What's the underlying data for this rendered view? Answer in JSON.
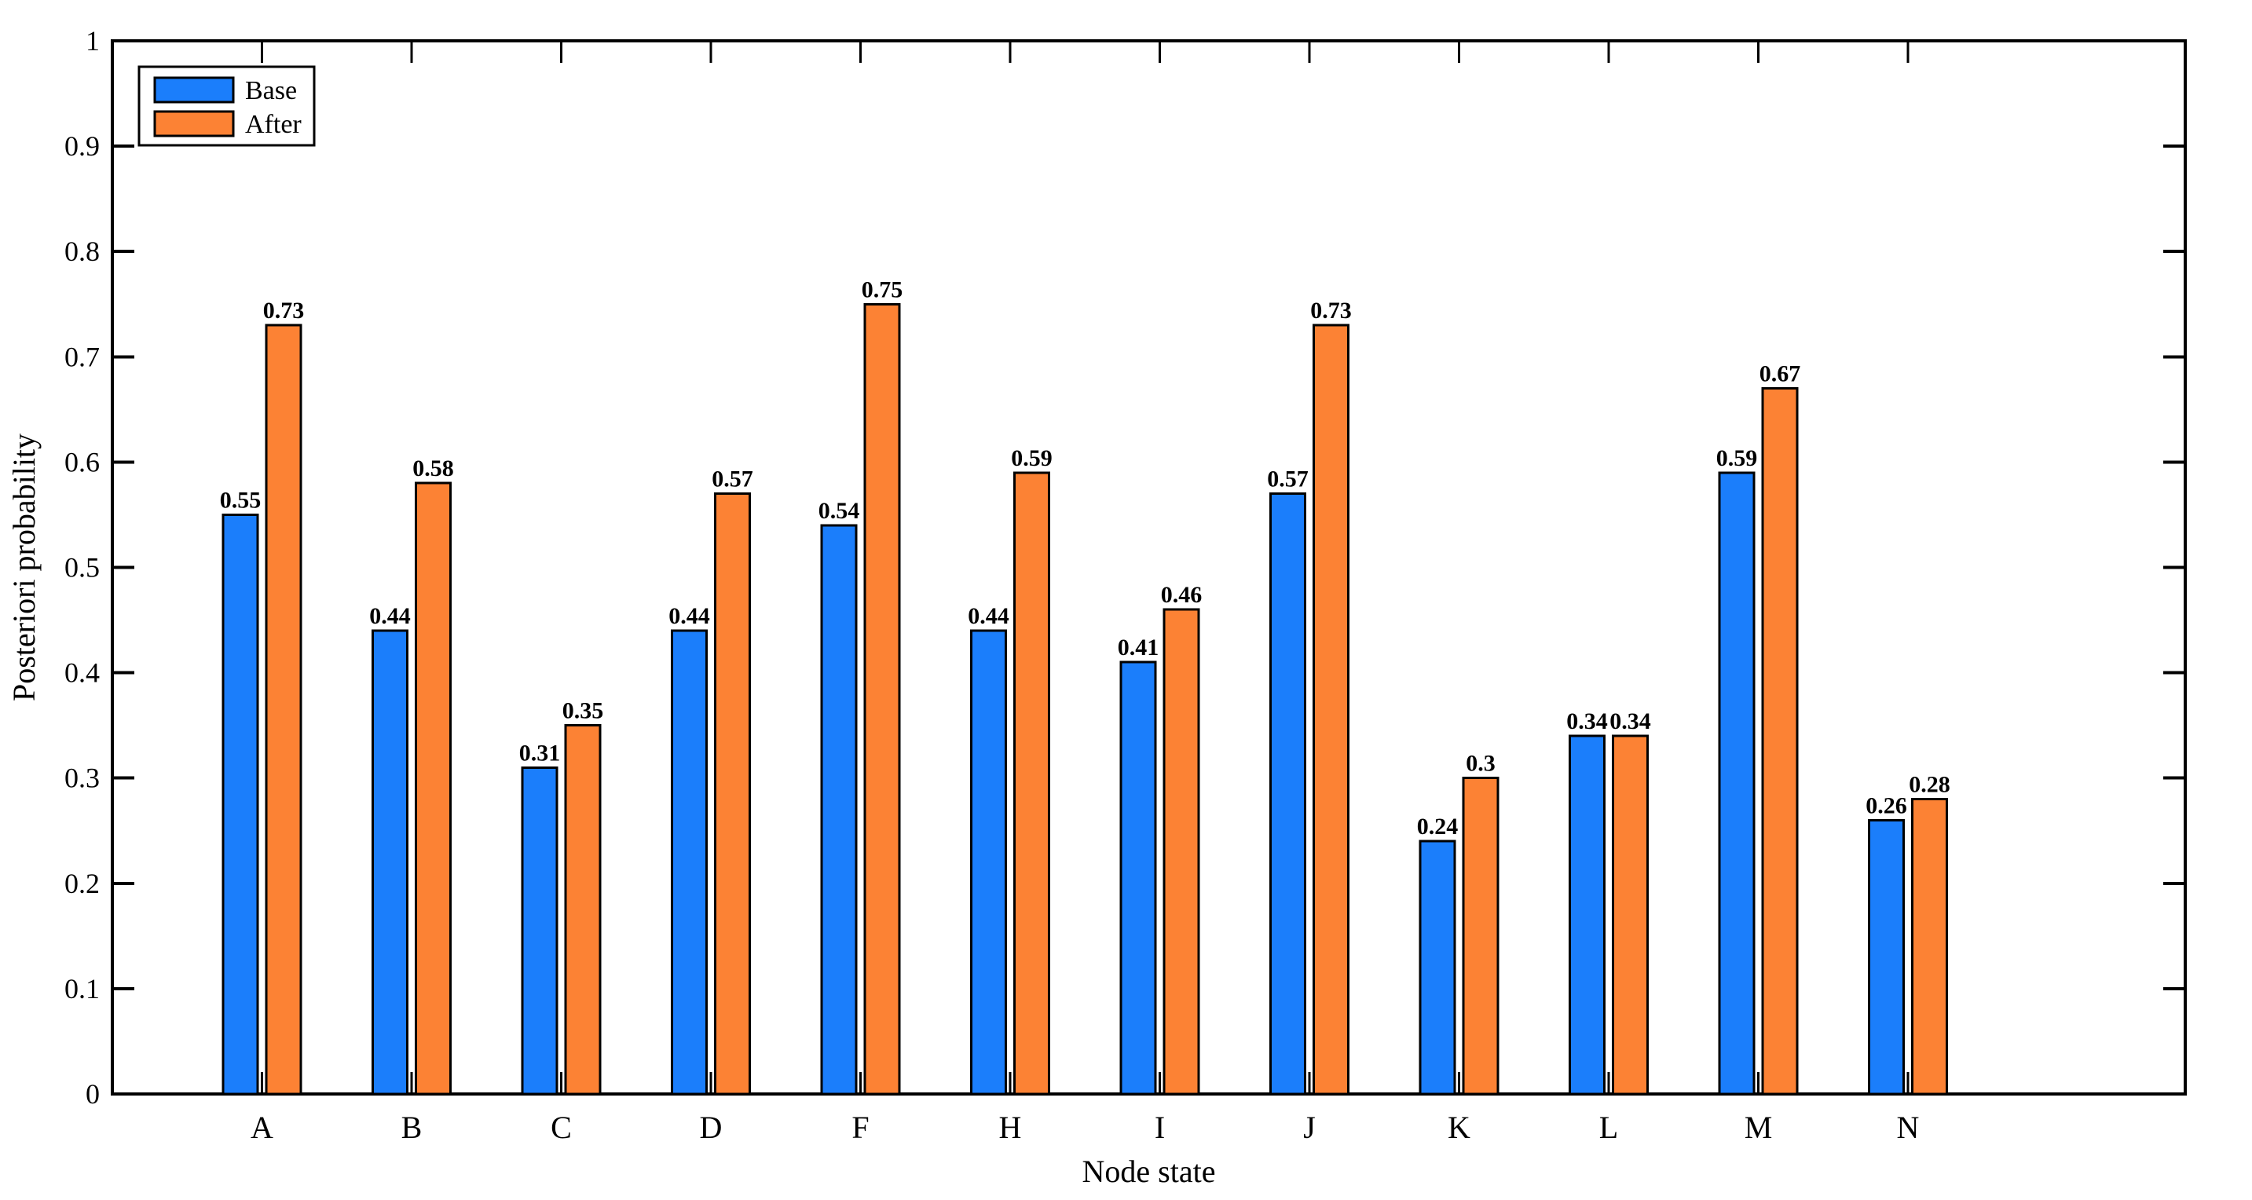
{
  "chart_data": {
    "type": "bar",
    "title": "",
    "xlabel": "Node state",
    "ylabel": "Posteriori probability",
    "categories": [
      "A",
      "B",
      "C",
      "D",
      "F",
      "H",
      "I",
      "J",
      "K",
      "L",
      "M",
      "N"
    ],
    "series": [
      {
        "name": "Base",
        "color": "#1B7EFB",
        "values": [
          0.55,
          0.44,
          0.31,
          0.44,
          0.54,
          0.44,
          0.41,
          0.57,
          0.24,
          0.34,
          0.59,
          0.26
        ],
        "labels": [
          "0.55",
          "0.44",
          "0.31",
          "0.44",
          "0.54",
          "0.44",
          "0.41",
          "0.57",
          "0.24",
          "0.34",
          "0.59",
          "0.26"
        ]
      },
      {
        "name": "After",
        "color": "#FC8234",
        "values": [
          0.73,
          0.58,
          0.35,
          0.57,
          0.75,
          0.59,
          0.46,
          0.73,
          0.3,
          0.34,
          0.67,
          0.28
        ],
        "labels": [
          "0.73",
          "0.58",
          "0.35",
          "0.57",
          "0.75",
          "0.59",
          "0.46",
          "0.73",
          "0.3",
          "0.34",
          "0.67",
          "0.28"
        ]
      }
    ],
    "bar_edge_color": "#000000",
    "axis_color": "#000000",
    "ylim": [
      0,
      1
    ],
    "yticks": [
      0,
      0.1,
      0.2,
      0.3,
      0.4,
      0.5,
      0.6,
      0.7,
      0.8,
      0.9,
      1
    ],
    "ytick_labels": [
      "0",
      "0.1",
      "0.2",
      "0.3",
      "0.4",
      "0.5",
      "0.6",
      "0.7",
      "0.8",
      "0.9",
      "1"
    ],
    "grid": false,
    "box": true,
    "tick_direction": "in",
    "legend_position": "top-left",
    "data_labels": true
  }
}
